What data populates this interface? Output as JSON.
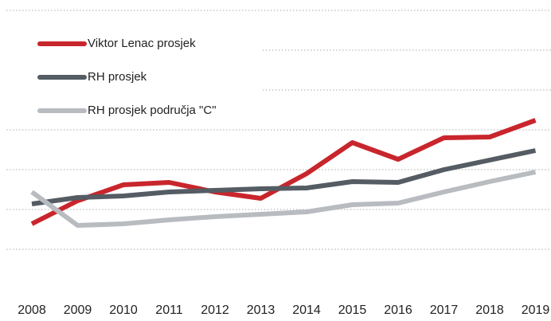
{
  "chart_data": {
    "type": "line",
    "categories": [
      "2008",
      "2009",
      "2010",
      "2011",
      "2012",
      "2013",
      "2014",
      "2015",
      "2016",
      "2017",
      "2018",
      "2019"
    ],
    "series": [
      {
        "name": "Viktor Lenac prosjek",
        "color": "#c8262c",
        "values": [
          1.64,
          2.22,
          2.62,
          2.68,
          2.44,
          2.28,
          2.9,
          3.68,
          3.26,
          3.8,
          3.82,
          4.24
        ]
      },
      {
        "name": "RH prosjek",
        "color": "#555c63",
        "values": [
          2.14,
          2.3,
          2.34,
          2.44,
          2.48,
          2.52,
          2.54,
          2.7,
          2.68,
          3.0,
          3.24,
          3.48
        ]
      },
      {
        "name": "RH prosjek područja \"C\"",
        "color": "#b8bcc0",
        "values": [
          2.44,
          1.6,
          1.64,
          1.74,
          1.82,
          1.88,
          1.94,
          2.12,
          2.16,
          2.44,
          2.7,
          2.94
        ]
      }
    ],
    "ylim": [
      0,
      7
    ],
    "yticks": [
      1,
      2,
      3,
      4,
      5,
      6,
      7
    ],
    "grid": true,
    "legend": "upper left"
  }
}
